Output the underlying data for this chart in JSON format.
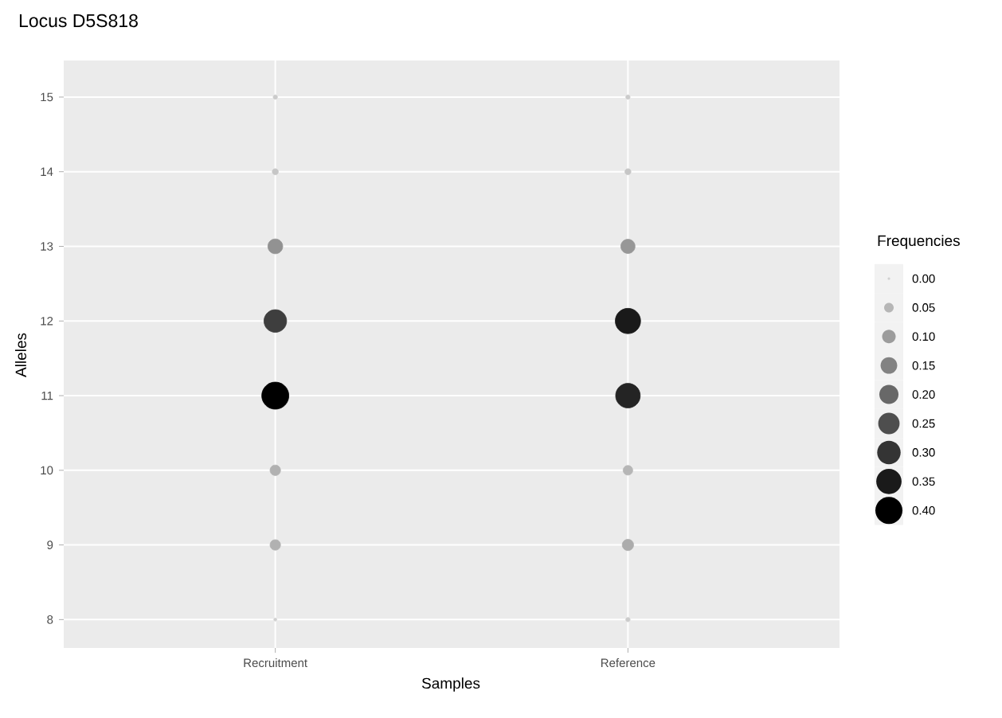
{
  "chart_data": {
    "type": "bubble",
    "title": "Locus D5S818",
    "xlabel": "Samples",
    "ylabel": "Alleles",
    "legend_title": "Frequencies",
    "categories": [
      "Recruitment",
      "Reference"
    ],
    "series": [
      {
        "x": [
          "Recruitment",
          "Recruitment",
          "Recruitment",
          "Recruitment",
          "Recruitment",
          "Recruitment",
          "Recruitment",
          "Recruitment"
        ],
        "values": [
          15,
          14,
          13,
          12,
          11,
          10,
          9,
          8
        ],
        "sizes": [
          0.01,
          0.02,
          0.12,
          0.28,
          0.4,
          0.06,
          0.06,
          0.005
        ],
        "colors": [
          "#cbcbcb",
          "#c6c6c6",
          "#929292",
          "#3e3e3e",
          "#000000",
          "#b1b1b1",
          "#b1b1b1",
          "#d0d0d0"
        ]
      },
      {
        "x": [
          "Reference",
          "Reference",
          "Reference",
          "Reference",
          "Reference",
          "Reference",
          "Reference",
          "Reference"
        ],
        "values": [
          15,
          14,
          13,
          12,
          11,
          10,
          9,
          8
        ],
        "sizes": [
          0.01,
          0.02,
          0.11,
          0.35,
          0.33,
          0.05,
          0.07,
          0.01
        ],
        "colors": [
          "#cbcbcb",
          "#c6c6c6",
          "#979797",
          "#1a1a1a",
          "#242424",
          "#b6b6b6",
          "#acacac",
          "#cbcbcb"
        ]
      }
    ],
    "size_legend": [
      {
        "value": 0,
        "label": "0.00"
      },
      {
        "value": 0.05,
        "label": "0.05"
      },
      {
        "value": 0.1,
        "label": "0.10"
      },
      {
        "value": 0.15,
        "label": "0.15"
      },
      {
        "value": 0.2,
        "label": "0.20"
      },
      {
        "value": 0.25,
        "label": "0.25"
      },
      {
        "value": 0.3,
        "label": "0.30"
      },
      {
        "value": 0.35,
        "label": "0.35"
      },
      {
        "value": 0.4,
        "label": "0.40"
      }
    ],
    "ylim": [
      7.62,
      15.49
    ],
    "yticks": [
      8,
      9,
      10,
      11,
      12,
      13,
      14,
      15
    ],
    "grid": true
  }
}
